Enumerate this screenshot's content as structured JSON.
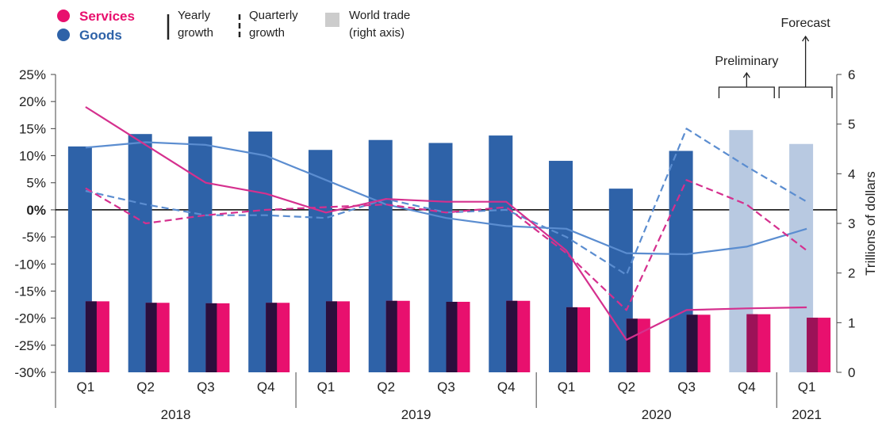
{
  "chart_data": {
    "type": "bar",
    "quarters": [
      "Q1",
      "Q2",
      "Q3",
      "Q4",
      "Q1",
      "Q2",
      "Q3",
      "Q4",
      "Q1",
      "Q2",
      "Q3",
      "Q4",
      "Q1"
    ],
    "years": [
      {
        "label": "2018",
        "from": 0,
        "to": 3
      },
      {
        "label": "2019",
        "from": 4,
        "to": 7
      },
      {
        "label": "2020",
        "from": 8,
        "to": 11
      },
      {
        "label": "2021",
        "from": 12,
        "to": 12
      }
    ],
    "left_axis": {
      "ticks": [
        "25%",
        "20%",
        "15%",
        "10%",
        "5%",
        "0%",
        "-5%",
        "-10%",
        "-15%",
        "-20%",
        "-25%",
        "-30%"
      ],
      "values": [
        25,
        20,
        15,
        10,
        5,
        0,
        -5,
        -10,
        -15,
        -20,
        -25,
        -30
      ],
      "ylim": [
        -30,
        25
      ]
    },
    "right_axis": {
      "label": "Trillions of dollars",
      "ticks": [
        "6",
        "5",
        "4",
        "3",
        "2",
        "1",
        "0"
      ],
      "values": [
        6,
        5,
        4,
        3,
        2,
        1,
        0
      ],
      "ylim": [
        0,
        6
      ]
    },
    "world_trade_goods": [
      4.55,
      4.8,
      4.75,
      4.85,
      4.48,
      4.68,
      4.62,
      4.77,
      4.26,
      3.7,
      4.46,
      4.88,
      4.6
    ],
    "world_trade_services": [
      1.43,
      1.4,
      1.39,
      1.4,
      1.43,
      1.44,
      1.42,
      1.44,
      1.31,
      1.08,
      1.16,
      1.17,
      1.1
    ],
    "forecast_flags": [
      false,
      false,
      false,
      false,
      false,
      false,
      false,
      false,
      false,
      false,
      false,
      true,
      true
    ],
    "goods_yearly_growth": [
      11.5,
      12.5,
      12.0,
      10.0,
      5.5,
      1.0,
      -1.5,
      -3.0,
      -3.5,
      -8.0,
      -8.2,
      -6.8,
      -3.5
    ],
    "goods_quarterly_growth": [
      3.5,
      1.0,
      -1.0,
      -1.0,
      -1.5,
      2.0,
      -0.5,
      0.0,
      -5.0,
      -12.0,
      15.0,
      8.0,
      1.5
    ],
    "services_yearly_growth": [
      19.0,
      12.0,
      5.0,
      3.0,
      -0.5,
      2.0,
      1.5,
      1.5,
      -7.5,
      -24.0,
      -18.5,
      -18.2,
      -18.0
    ],
    "services_quarterly_growth": [
      4.0,
      -2.5,
      -1.0,
      0.0,
      0.5,
      1.0,
      -0.5,
      0.5,
      -8.0,
      -18.5,
      5.5,
      1.0,
      -7.5
    ],
    "annotations": {
      "preliminary": "Preliminary",
      "forecast": "Forecast",
      "arrow": "↑"
    }
  },
  "legend": {
    "services": "Services",
    "goods": "Goods",
    "yearly_line1": "Yearly",
    "yearly_line2": "growth",
    "quarterly_line1": "Quarterly",
    "quarterly_line2": "growth",
    "world_trade_line1": "World trade",
    "world_trade_line2": "(right axis)"
  },
  "colors": {
    "services": "#e8106e",
    "goods": "#2e62a8",
    "goods_line": "#5b8dd0",
    "services_line": "#d5308e",
    "forecast_bar": "#b8c9e1",
    "services_dark": "#2b0f3d",
    "services_forecast_dark": "#9c1258",
    "legend_box": "#cccccc"
  }
}
